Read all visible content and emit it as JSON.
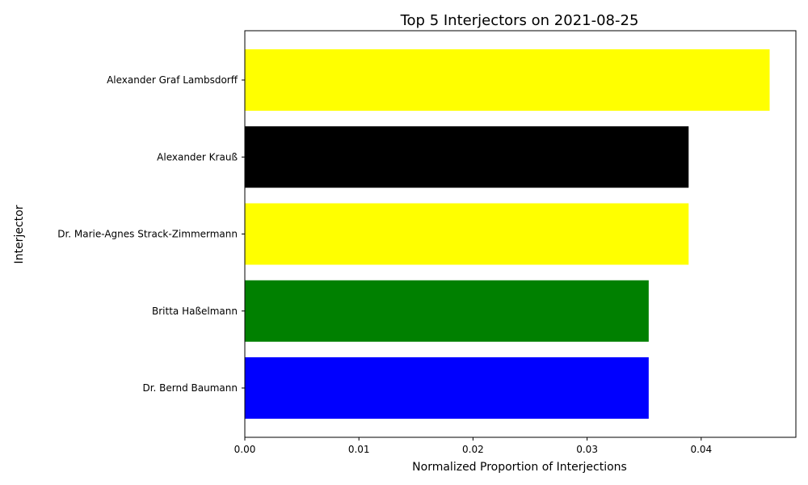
{
  "chart_data": {
    "type": "bar",
    "orientation": "horizontal",
    "title": "Top 5 Interjectors on 2021-08-25",
    "xlabel": "Normalized Proportion of Interjections",
    "ylabel": "Interjector",
    "xlim": [
      0,
      0.0483
    ],
    "xticks": [
      "0.00",
      "0.01",
      "0.02",
      "0.03",
      "0.04"
    ],
    "grid": false,
    "categories": [
      "Alexander Graf Lambsdorff",
      "Alexander Krauß",
      "Dr. Marie-Agnes Strack-Zimmermann",
      "Britta Haßelmann",
      "Dr. Bernd Baumann"
    ],
    "values": [
      0.046,
      0.0389,
      0.0389,
      0.0354,
      0.0354
    ],
    "colors": [
      "#ffff00",
      "#000000",
      "#ffff00",
      "#008000",
      "#0000ff"
    ]
  }
}
